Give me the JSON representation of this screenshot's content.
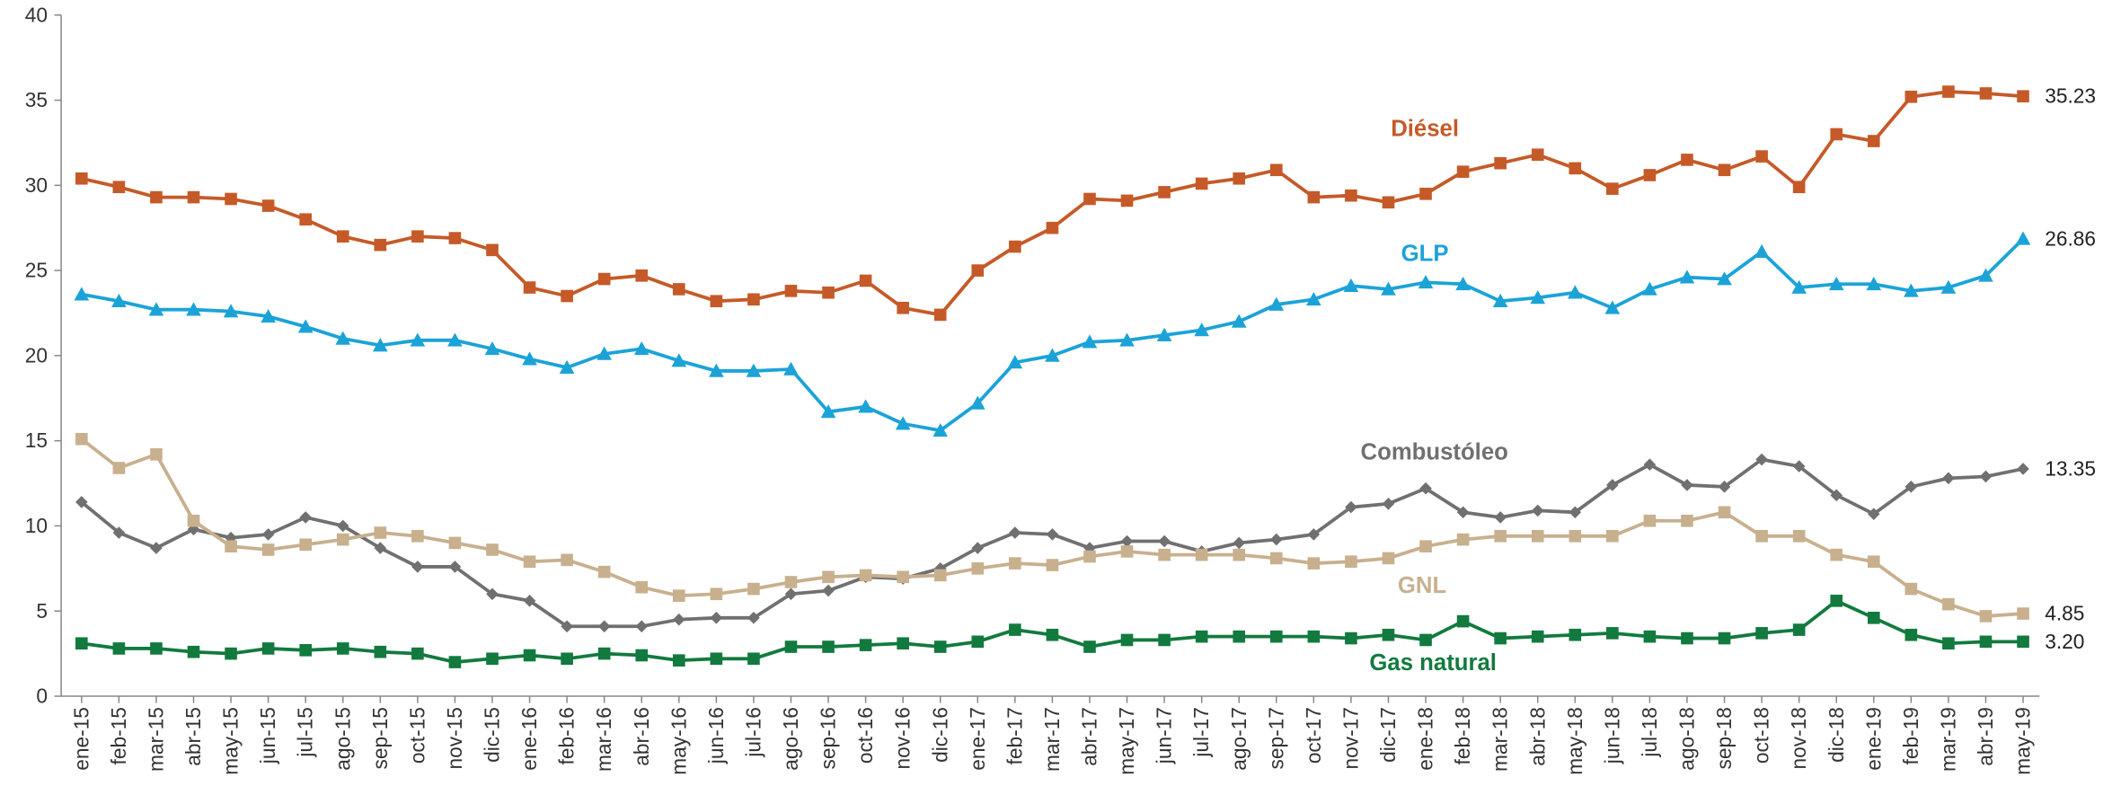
{
  "chart_data": {
    "type": "line",
    "categories": [
      "ene-15",
      "feb-15",
      "mar-15",
      "abr-15",
      "may-15",
      "jun-15",
      "jul-15",
      "ago-15",
      "sep-15",
      "oct-15",
      "nov-15",
      "dic-15",
      "ene-16",
      "feb-16",
      "mar-16",
      "abr-16",
      "may-16",
      "jun-16",
      "jul-16",
      "ago-16",
      "sep-16",
      "oct-16",
      "nov-16",
      "dic-16",
      "ene-17",
      "feb-17",
      "mar-17",
      "abr-17",
      "may-17",
      "jun-17",
      "jul-17",
      "ago-17",
      "sep-17",
      "oct-17",
      "nov-17",
      "dic-17",
      "ene-18",
      "feb-18",
      "mar-18",
      "abr-18",
      "may-18",
      "jun-18",
      "jul-18",
      "ago-18",
      "sep-18",
      "oct-18",
      "nov-18",
      "dic-18",
      "ene-19",
      "feb-19",
      "mar-19",
      "abr-19",
      "may-19"
    ],
    "ylim": [
      0,
      40
    ],
    "yticks": [
      0,
      5,
      10,
      15,
      20,
      25,
      30,
      35,
      40
    ],
    "grid": false,
    "series": [
      {
        "name": "Diésel",
        "color": "#c55a28",
        "marker": "square",
        "values": [
          30.4,
          29.9,
          29.3,
          29.3,
          29.2,
          28.8,
          28.0,
          27.0,
          26.5,
          27.0,
          26.9,
          26.2,
          24.0,
          23.5,
          24.5,
          24.7,
          23.9,
          23.2,
          23.3,
          23.8,
          23.7,
          24.4,
          22.8,
          22.4,
          25.0,
          26.4,
          27.5,
          29.2,
          29.1,
          29.6,
          30.1,
          30.4,
          30.9,
          29.3,
          29.4,
          29.0,
          29.5,
          30.8,
          31.3,
          31.8,
          31.0,
          29.8,
          30.6,
          31.5,
          30.9,
          31.7,
          29.9,
          33.0,
          32.6,
          35.2,
          35.5,
          35.4,
          35.23
        ],
        "value_labels": [
          null,
          null,
          null,
          null,
          null,
          null,
          null,
          null,
          null,
          null,
          null,
          null,
          null,
          null,
          null,
          null,
          null,
          null,
          null,
          null,
          null,
          null,
          null,
          null,
          null,
          null,
          null,
          null,
          null,
          null,
          null,
          null,
          null,
          null,
          null,
          null,
          null,
          null,
          null,
          null,
          null,
          null,
          null,
          null,
          null,
          null,
          null,
          null,
          null,
          null,
          null,
          null,
          "35.23"
        ]
      },
      {
        "name": "GLP",
        "color": "#1ba3d8",
        "marker": "triangle",
        "values": [
          23.6,
          23.2,
          22.7,
          22.7,
          22.6,
          22.3,
          21.7,
          21.0,
          20.6,
          20.9,
          20.9,
          20.4,
          19.8,
          19.3,
          20.1,
          20.4,
          19.7,
          19.1,
          19.1,
          19.2,
          16.7,
          17.0,
          16.0,
          15.6,
          17.2,
          19.6,
          20.0,
          20.8,
          20.9,
          21.2,
          21.5,
          22.0,
          23.0,
          23.3,
          24.1,
          23.9,
          24.3,
          24.2,
          23.2,
          23.4,
          23.7,
          22.8,
          23.9,
          24.6,
          24.5,
          26.1,
          24.0,
          24.2,
          24.2,
          23.8,
          24.0,
          24.7,
          26.86
        ],
        "value_labels": [
          null,
          null,
          null,
          null,
          null,
          null,
          null,
          null,
          null,
          null,
          null,
          null,
          null,
          null,
          null,
          null,
          null,
          null,
          null,
          null,
          null,
          null,
          null,
          null,
          null,
          null,
          null,
          null,
          null,
          null,
          null,
          null,
          null,
          null,
          null,
          null,
          null,
          null,
          null,
          null,
          null,
          null,
          null,
          null,
          null,
          null,
          null,
          null,
          null,
          null,
          null,
          null,
          "26.86"
        ]
      },
      {
        "name": "Combustóleo",
        "color": "#707070",
        "marker": "diamond",
        "values": [
          11.4,
          9.6,
          8.7,
          9.8,
          9.3,
          9.5,
          10.5,
          10.0,
          8.7,
          7.6,
          7.6,
          6.0,
          5.6,
          4.1,
          4.1,
          4.1,
          4.5,
          4.6,
          4.6,
          6.0,
          6.2,
          7.0,
          6.9,
          7.5,
          8.7,
          9.6,
          9.5,
          8.7,
          9.1,
          9.1,
          8.5,
          9.0,
          9.2,
          9.5,
          11.1,
          11.3,
          12.2,
          10.8,
          10.5,
          10.9,
          10.8,
          12.4,
          13.6,
          12.4,
          12.3,
          13.9,
          13.5,
          11.8,
          10.7,
          12.3,
          12.8,
          12.9,
          13.35
        ],
        "value_labels": [
          null,
          null,
          null,
          null,
          null,
          null,
          null,
          null,
          null,
          null,
          null,
          null,
          null,
          null,
          null,
          null,
          null,
          null,
          null,
          null,
          null,
          null,
          null,
          null,
          null,
          null,
          null,
          null,
          null,
          null,
          null,
          null,
          null,
          null,
          null,
          null,
          null,
          null,
          null,
          null,
          null,
          null,
          null,
          null,
          null,
          null,
          null,
          null,
          null,
          null,
          null,
          null,
          "13.35"
        ]
      },
      {
        "name": "GNL",
        "color": "#c8b08e",
        "marker": "square",
        "values": [
          15.1,
          13.4,
          14.2,
          10.3,
          8.8,
          8.6,
          8.9,
          9.2,
          9.6,
          9.4,
          9.0,
          8.6,
          7.9,
          8.0,
          7.3,
          6.4,
          5.9,
          6.0,
          6.3,
          6.7,
          7.0,
          7.1,
          7.0,
          7.1,
          7.5,
          7.8,
          7.7,
          8.2,
          8.5,
          8.3,
          8.3,
          8.3,
          8.1,
          7.8,
          7.9,
          8.1,
          8.8,
          9.2,
          9.4,
          9.4,
          9.4,
          9.4,
          10.3,
          10.3,
          10.8,
          9.4,
          9.4,
          8.3,
          7.9,
          6.3,
          5.4,
          4.7,
          4.85
        ],
        "value_labels": [
          null,
          null,
          null,
          null,
          null,
          null,
          null,
          null,
          null,
          null,
          null,
          null,
          null,
          null,
          null,
          null,
          null,
          null,
          null,
          null,
          null,
          null,
          null,
          null,
          null,
          null,
          null,
          null,
          null,
          null,
          null,
          null,
          null,
          null,
          null,
          null,
          null,
          null,
          null,
          null,
          null,
          null,
          null,
          null,
          null,
          null,
          null,
          null,
          null,
          null,
          null,
          null,
          "4.85"
        ]
      },
      {
        "name": "Gas natural",
        "color": "#127a3e",
        "marker": "square",
        "values": [
          3.1,
          2.8,
          2.8,
          2.6,
          2.5,
          2.8,
          2.7,
          2.8,
          2.6,
          2.5,
          2.0,
          2.2,
          2.4,
          2.2,
          2.5,
          2.4,
          2.1,
          2.2,
          2.2,
          2.9,
          2.9,
          3.0,
          3.1,
          2.9,
          3.2,
          3.9,
          3.6,
          2.9,
          3.3,
          3.3,
          3.5,
          3.5,
          3.5,
          3.5,
          3.4,
          3.6,
          3.3,
          4.4,
          3.4,
          3.5,
          3.6,
          3.7,
          3.5,
          3.4,
          3.4,
          3.7,
          3.9,
          5.6,
          4.6,
          3.6,
          3.1,
          3.2,
          3.2
        ],
        "value_labels": [
          null,
          null,
          null,
          null,
          null,
          null,
          null,
          null,
          null,
          null,
          null,
          null,
          null,
          null,
          null,
          null,
          null,
          null,
          null,
          null,
          null,
          null,
          null,
          null,
          null,
          null,
          null,
          null,
          null,
          null,
          null,
          null,
          null,
          null,
          null,
          null,
          null,
          null,
          null,
          null,
          null,
          null,
          null,
          null,
          null,
          null,
          null,
          null,
          null,
          null,
          null,
          null,
          "3.20"
        ]
      }
    ]
  }
}
